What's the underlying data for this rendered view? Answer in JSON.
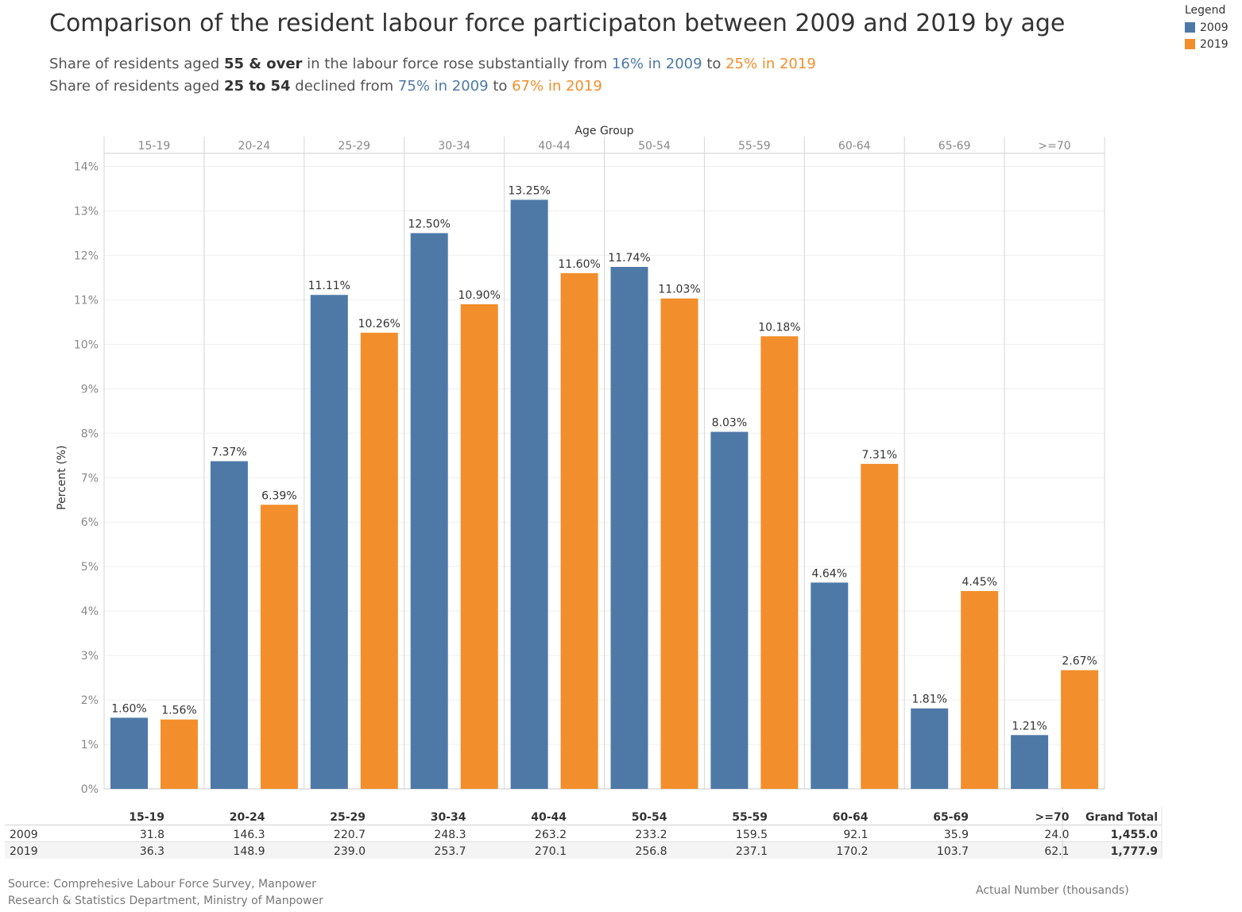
{
  "title": "Comparison of the resident labour force participaton between 2009 and 2019 by age",
  "subtitle1": {
    "a": "Share of residents aged ",
    "b": "55 & over",
    "c": " in the labour force  rose substantially from ",
    "d": "16% in 2009",
    "e": " to ",
    "f": "25% in 2019"
  },
  "subtitle2": {
    "a": "Share of residents aged ",
    "b": "25 to 54",
    "c": " declined from ",
    "d": "75% in 2009",
    "e": " to ",
    "f": "67% in 2019"
  },
  "legend": {
    "title": "Legend",
    "items": [
      {
        "label": "2009",
        "color": "#4e79a7"
      },
      {
        "label": "2019",
        "color": "#f28e2b"
      }
    ]
  },
  "chart_data": {
    "type": "bar",
    "title": "Comparison of the resident labour force participaton between 2009 and 2019 by age",
    "header_label": "Age Group",
    "ylabel": "Percent (%)",
    "xlabel": "",
    "ylim": [
      0,
      14
    ],
    "yticks": [
      "0%",
      "1%",
      "2%",
      "3%",
      "4%",
      "5%",
      "6%",
      "7%",
      "8%",
      "9%",
      "10%",
      "11%",
      "12%",
      "13%",
      "14%"
    ],
    "categories": [
      "15-19",
      "20-24",
      "25-29",
      "30-34",
      "40-44",
      "50-54",
      "55-59",
      "60-64",
      "65-69",
      ">=70"
    ],
    "series": [
      {
        "name": "2009",
        "color": "#4e79a7",
        "values": [
          1.6,
          7.37,
          11.11,
          12.5,
          13.25,
          11.74,
          8.03,
          4.64,
          1.81,
          1.21
        ],
        "labels": [
          "1.60%",
          "7.37%",
          "11.11%",
          "12.50%",
          "13.25%",
          "11.74%",
          "8.03%",
          "4.64%",
          "1.81%",
          "1.21%"
        ]
      },
      {
        "name": "2019",
        "color": "#f28e2b",
        "values": [
          1.56,
          6.39,
          10.26,
          10.9,
          11.6,
          11.03,
          10.18,
          7.31,
          4.45,
          2.67
        ],
        "labels": [
          "1.56%",
          "6.39%",
          "10.26%",
          "10.90%",
          "11.60%",
          "11.03%",
          "10.18%",
          "7.31%",
          "4.45%",
          "2.67%"
        ]
      }
    ],
    "grid": true,
    "legend_position": "top-right"
  },
  "table": {
    "total_header": "Grand Total",
    "rows": [
      {
        "year": "2009",
        "values": [
          "31.8",
          "146.3",
          "220.7",
          "248.3",
          "263.2",
          "233.2",
          "159.5",
          "92.1",
          "35.9",
          "24.0"
        ],
        "total": "1,455.0"
      },
      {
        "year": "2019",
        "values": [
          "36.3",
          "148.9",
          "239.0",
          "253.7",
          "270.1",
          "256.8",
          "237.1",
          "170.2",
          "103.7",
          "62.1"
        ],
        "total": "1,777.9"
      }
    ]
  },
  "footer": {
    "source_line1": "Source: Comprehesive Labour Force Survey, Manpower",
    "source_line2": "Research & Statistics Department, Ministry of Manpower",
    "note": "Actual Number (thousands)"
  }
}
